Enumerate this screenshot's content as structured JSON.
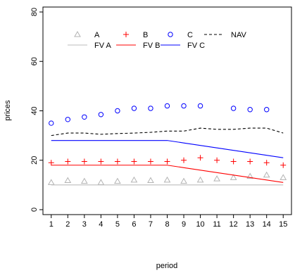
{
  "chart_data": {
    "type": "scatter",
    "title": "",
    "xlabel": "period",
    "ylabel": "prices",
    "x": [
      1,
      2,
      3,
      4,
      5,
      6,
      7,
      8,
      9,
      10,
      11,
      12,
      13,
      14,
      15
    ],
    "xlim": [
      0.5,
      15.5
    ],
    "ylim": [
      -2,
      82
    ],
    "xticks": [
      1,
      2,
      3,
      4,
      5,
      6,
      7,
      8,
      9,
      10,
      11,
      12,
      13,
      14,
      15
    ],
    "yticks": [
      0,
      20,
      40,
      60,
      80
    ],
    "grid": false,
    "legend_position": "top-left",
    "series": [
      {
        "name": "A",
        "kind": "points",
        "marker": "triangle",
        "color": "#b3b3b3",
        "values": [
          11.0,
          11.8,
          11.5,
          11.0,
          11.5,
          12.0,
          11.8,
          12.0,
          11.5,
          12.0,
          12.5,
          13.0,
          13.5,
          14.0,
          13.0
        ]
      },
      {
        "name": "B",
        "kind": "points",
        "marker": "plus",
        "color": "#ff0000",
        "values": [
          19.0,
          19.5,
          19.5,
          19.5,
          19.5,
          19.5,
          19.5,
          19.5,
          20.0,
          21.0,
          20.0,
          19.5,
          19.5,
          19.0,
          18.0
        ]
      },
      {
        "name": "C",
        "kind": "points",
        "marker": "circle",
        "color": "#0000ff",
        "values": [
          35.0,
          36.5,
          37.5,
          38.5,
          40.0,
          41.0,
          41.0,
          42.0,
          42.0,
          42.0,
          null,
          41.0,
          40.5,
          40.5,
          null
        ]
      },
      {
        "name": "NAV",
        "kind": "line",
        "dash": "dashed",
        "color": "#000000",
        "values": [
          30.0,
          31.0,
          31.0,
          30.5,
          30.8,
          31.0,
          31.3,
          31.8,
          31.8,
          33.0,
          32.5,
          32.5,
          33.0,
          33.0,
          31.0
        ]
      },
      {
        "name": "FV A",
        "kind": "line",
        "dash": "solid",
        "color": "#bdbdbd",
        "values": [
          10,
          10,
          10,
          10,
          10,
          10,
          10,
          10,
          10,
          10,
          10,
          10,
          10,
          10,
          10
        ]
      },
      {
        "name": "FV B",
        "kind": "line",
        "dash": "solid",
        "color": "#ff0000",
        "values": [
          18,
          18,
          18,
          18,
          18,
          18,
          18,
          18,
          17,
          16,
          15,
          14,
          13,
          12,
          11
        ]
      },
      {
        "name": "FV C",
        "kind": "line",
        "dash": "solid",
        "color": "#0000ff",
        "values": [
          28,
          28,
          28,
          28,
          28,
          28,
          28,
          28,
          27,
          26,
          25,
          24,
          23,
          22,
          21
        ]
      }
    ]
  }
}
